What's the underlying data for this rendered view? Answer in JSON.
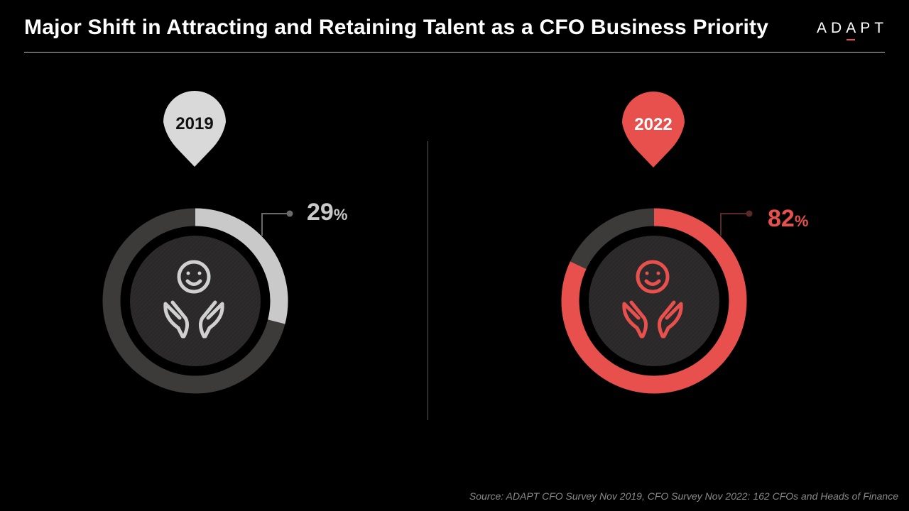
{
  "title": "Major Shift in Attracting and Retaining Talent as a CFO Business Priority",
  "logo": {
    "letters": [
      "A",
      "D",
      "A",
      "P",
      "T"
    ],
    "accent_letter_index": 2
  },
  "source": "Source: ADAPT CFO Survey Nov 2019, CFO  Survey Nov 2022: 162 CFOs and Heads of Finance",
  "colors": {
    "background": "#000000",
    "track": "#3d3a3a",
    "inner_disc": "#2a2828",
    "pin_2019": "#d9d9d9",
    "fill_2019": "#c9c9c9",
    "pin_2022": "#e8504e",
    "fill_2022": "#e8504e"
  },
  "chart_data": [
    {
      "type": "pie",
      "label": "2019",
      "value": 29,
      "value_text": "29",
      "unit": "%",
      "max": 100,
      "icon": "smiley-in-hands-icon",
      "colors": {
        "pin": "#d9d9d9",
        "pin_text": "#111111",
        "fill": "#c9c9c9",
        "value_text": "#c9c9c9",
        "icon": "#d0d0d0"
      }
    },
    {
      "type": "pie",
      "label": "2022",
      "value": 82,
      "value_text": "82",
      "unit": "%",
      "max": 100,
      "icon": "smiley-in-hands-icon",
      "colors": {
        "pin": "#e8504e",
        "pin_text": "#ffffff",
        "fill": "#e8504e",
        "value_text": "#e8504e",
        "icon": "#e8504e"
      }
    }
  ]
}
